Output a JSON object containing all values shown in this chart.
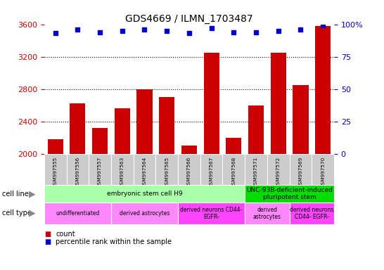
{
  "title": "GDS4669 / ILMN_1703487",
  "samples": [
    "GSM997555",
    "GSM997556",
    "GSM997557",
    "GSM997563",
    "GSM997564",
    "GSM997565",
    "GSM997566",
    "GSM997567",
    "GSM997568",
    "GSM997571",
    "GSM997572",
    "GSM997569",
    "GSM997570"
  ],
  "counts": [
    2180,
    2620,
    2320,
    2560,
    2800,
    2700,
    2100,
    3250,
    2200,
    2600,
    3250,
    2850,
    3580
  ],
  "percentiles": [
    93,
    96,
    94,
    95,
    96,
    95,
    93,
    97,
    94,
    94,
    95,
    96,
    99
  ],
  "ylim_left": [
    2000,
    3600
  ],
  "ylim_right": [
    0,
    100
  ],
  "yticks_left": [
    2000,
    2400,
    2800,
    3200,
    3600
  ],
  "yticks_right": [
    0,
    25,
    50,
    75,
    100
  ],
  "ytick_right_labels": [
    "0",
    "25",
    "50",
    "75",
    "100%"
  ],
  "bar_color": "#cc0000",
  "dot_color": "#0000cc",
  "bar_bottom": 2000,
  "cell_line_groups": [
    {
      "label": "embryonic stem cell H9",
      "start": 0,
      "end": 9,
      "color": "#aaffaa"
    },
    {
      "label": "UNC-93B-deficient-induced\npluripotent stem",
      "start": 9,
      "end": 13,
      "color": "#00dd00"
    }
  ],
  "cell_type_groups": [
    {
      "label": "undifferentiated",
      "start": 0,
      "end": 3,
      "color": "#ff88ff"
    },
    {
      "label": "derived astrocytes",
      "start": 3,
      "end": 6,
      "color": "#ff88ff"
    },
    {
      "label": "derived neurons CD44-\nEGFR-",
      "start": 6,
      "end": 9,
      "color": "#ff44ff"
    },
    {
      "label": "derived\nastrocytes",
      "start": 9,
      "end": 11,
      "color": "#ff88ff"
    },
    {
      "label": "derived neurons\nCD44- EGFR-",
      "start": 11,
      "end": 13,
      "color": "#ff44ff"
    }
  ],
  "tick_color_left": "#cc0000",
  "tick_color_right": "#0000cc",
  "background_color": "#ffffff",
  "sample_box_color": "#cccccc",
  "border_color": "#888888"
}
